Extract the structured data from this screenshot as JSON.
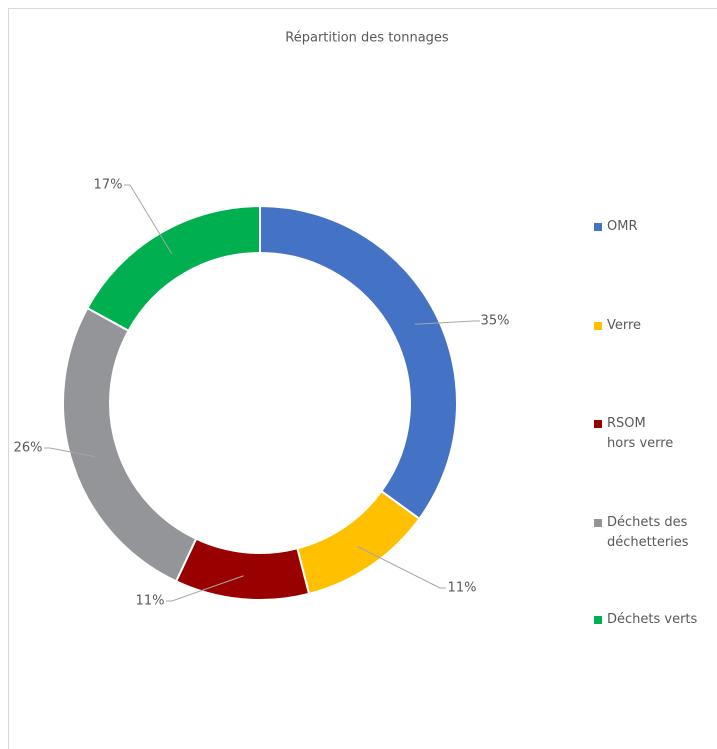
{
  "chart_data": {
    "type": "pie",
    "title": "Répartition des tonnages",
    "categories": [
      "OMR",
      "Verre",
      "RSOM\nhors verre",
      "Déchets des\ndéchetteries",
      "Déchets verts"
    ],
    "values": [
      35,
      11,
      11,
      26,
      17
    ],
    "value_labels": [
      "35%",
      "11%",
      "11%",
      "26%",
      "17%"
    ],
    "colors": [
      "#4472c4",
      "#ffc000",
      "#990000",
      "#939598",
      "#00b050"
    ],
    "donut": true,
    "legend": "right"
  }
}
